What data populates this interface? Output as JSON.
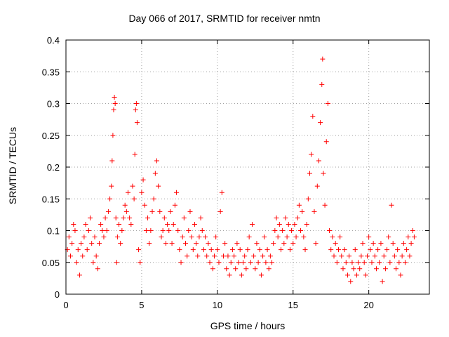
{
  "chart_data": {
    "type": "scatter",
    "title": "Day 066 of 2017, SRMTID for receiver nmtn",
    "xlabel": "GPS time / hours",
    "ylabel": "SRMTID / TECUs",
    "xlim": [
      0,
      24
    ],
    "ylim": [
      0,
      0.4
    ],
    "xticks": [
      0,
      5,
      10,
      15,
      20
    ],
    "yticks": [
      0,
      0.05,
      0.1,
      0.15,
      0.2,
      0.25,
      0.3,
      0.35,
      0.4
    ],
    "xtick_labels": [
      "0",
      "5",
      "10",
      "15",
      "20"
    ],
    "ytick_labels": [
      "0",
      "0.05",
      "0.1",
      "0.15",
      "0.2",
      "0.25",
      "0.3",
      "0.35",
      "0.4"
    ],
    "grid": true,
    "marker": "+",
    "color": "#ff0000",
    "series": [
      {
        "name": "SRMTID",
        "points": [
          [
            0.1,
            0.07
          ],
          [
            0.2,
            0.09
          ],
          [
            0.3,
            0.06
          ],
          [
            0.4,
            0.08
          ],
          [
            0.5,
            0.11
          ],
          [
            0.6,
            0.1
          ],
          [
            0.7,
            0.05
          ],
          [
            0.8,
            0.07
          ],
          [
            0.9,
            0.03
          ],
          [
            1.0,
            0.08
          ],
          [
            1.1,
            0.06
          ],
          [
            1.2,
            0.09
          ],
          [
            1.3,
            0.11
          ],
          [
            1.4,
            0.07
          ],
          [
            1.5,
            0.1
          ],
          [
            1.6,
            0.12
          ],
          [
            1.7,
            0.08
          ],
          [
            1.8,
            0.05
          ],
          [
            1.9,
            0.09
          ],
          [
            2.0,
            0.06
          ],
          [
            2.1,
            0.04
          ],
          [
            2.2,
            0.08
          ],
          [
            2.3,
            0.11
          ],
          [
            2.4,
            0.1
          ],
          [
            2.5,
            0.09
          ],
          [
            2.6,
            0.12
          ],
          [
            2.7,
            0.1
          ],
          [
            2.8,
            0.13
          ],
          [
            2.9,
            0.15
          ],
          [
            3.0,
            0.17
          ],
          [
            3.05,
            0.21
          ],
          [
            3.1,
            0.25
          ],
          [
            3.15,
            0.29
          ],
          [
            3.2,
            0.31
          ],
          [
            3.25,
            0.3
          ],
          [
            3.3,
            0.12
          ],
          [
            3.35,
            0.05
          ],
          [
            3.4,
            0.09
          ],
          [
            3.5,
            0.11
          ],
          [
            3.6,
            0.08
          ],
          [
            3.7,
            0.1
          ],
          [
            3.8,
            0.12
          ],
          [
            3.9,
            0.14
          ],
          [
            4.0,
            0.13
          ],
          [
            4.1,
            0.16
          ],
          [
            4.2,
            0.12
          ],
          [
            4.3,
            0.11
          ],
          [
            4.4,
            0.17
          ],
          [
            4.5,
            0.15
          ],
          [
            4.55,
            0.22
          ],
          [
            4.6,
            0.29
          ],
          [
            4.65,
            0.3
          ],
          [
            4.7,
            0.27
          ],
          [
            4.8,
            0.07
          ],
          [
            4.9,
            0.05
          ],
          [
            5.0,
            0.16
          ],
          [
            5.1,
            0.18
          ],
          [
            5.2,
            0.14
          ],
          [
            5.3,
            0.1
          ],
          [
            5.4,
            0.12
          ],
          [
            5.5,
            0.08
          ],
          [
            5.6,
            0.1
          ],
          [
            5.7,
            0.13
          ],
          [
            5.8,
            0.15
          ],
          [
            5.9,
            0.19
          ],
          [
            6.0,
            0.21
          ],
          [
            6.1,
            0.17
          ],
          [
            6.2,
            0.13
          ],
          [
            6.3,
            0.09
          ],
          [
            6.4,
            0.1
          ],
          [
            6.5,
            0.12
          ],
          [
            6.6,
            0.08
          ],
          [
            6.7,
            0.11
          ],
          [
            6.8,
            0.1
          ],
          [
            6.9,
            0.13
          ],
          [
            7.0,
            0.08
          ],
          [
            7.1,
            0.11
          ],
          [
            7.2,
            0.14
          ],
          [
            7.3,
            0.16
          ],
          [
            7.4,
            0.1
          ],
          [
            7.5,
            0.07
          ],
          [
            7.6,
            0.05
          ],
          [
            7.7,
            0.09
          ],
          [
            7.8,
            0.12
          ],
          [
            7.9,
            0.08
          ],
          [
            8.0,
            0.06
          ],
          [
            8.1,
            0.1
          ],
          [
            8.2,
            0.13
          ],
          [
            8.3,
            0.09
          ],
          [
            8.4,
            0.07
          ],
          [
            8.5,
            0.11
          ],
          [
            8.6,
            0.08
          ],
          [
            8.7,
            0.06
          ],
          [
            8.8,
            0.09
          ],
          [
            8.9,
            0.12
          ],
          [
            9.0,
            0.1
          ],
          [
            9.1,
            0.07
          ],
          [
            9.2,
            0.09
          ],
          [
            9.3,
            0.06
          ],
          [
            9.4,
            0.08
          ],
          [
            9.5,
            0.05
          ],
          [
            9.6,
            0.07
          ],
          [
            9.7,
            0.04
          ],
          [
            9.8,
            0.06
          ],
          [
            9.9,
            0.09
          ],
          [
            10.0,
            0.07
          ],
          [
            10.1,
            0.05
          ],
          [
            10.2,
            0.13
          ],
          [
            10.3,
            0.16
          ],
          [
            10.4,
            0.06
          ],
          [
            10.5,
            0.08
          ],
          [
            10.6,
            0.04
          ],
          [
            10.7,
            0.06
          ],
          [
            10.8,
            0.03
          ],
          [
            10.9,
            0.05
          ],
          [
            11.0,
            0.07
          ],
          [
            11.1,
            0.06
          ],
          [
            11.2,
            0.04
          ],
          [
            11.3,
            0.08
          ],
          [
            11.4,
            0.05
          ],
          [
            11.5,
            0.07
          ],
          [
            11.6,
            0.03
          ],
          [
            11.7,
            0.05
          ],
          [
            11.8,
            0.06
          ],
          [
            11.9,
            0.04
          ],
          [
            12.0,
            0.07
          ],
          [
            12.1,
            0.09
          ],
          [
            12.2,
            0.05
          ],
          [
            12.3,
            0.11
          ],
          [
            12.4,
            0.06
          ],
          [
            12.5,
            0.04
          ],
          [
            12.6,
            0.08
          ],
          [
            12.7,
            0.05
          ],
          [
            12.8,
            0.07
          ],
          [
            12.9,
            0.03
          ],
          [
            13.0,
            0.06
          ],
          [
            13.1,
            0.09
          ],
          [
            13.2,
            0.05
          ],
          [
            13.3,
            0.07
          ],
          [
            13.4,
            0.04
          ],
          [
            13.5,
            0.06
          ],
          [
            13.6,
            0.05
          ],
          [
            13.7,
            0.08
          ],
          [
            13.8,
            0.1
          ],
          [
            13.9,
            0.12
          ],
          [
            14.0,
            0.09
          ],
          [
            14.1,
            0.11
          ],
          [
            14.2,
            0.07
          ],
          [
            14.3,
            0.1
          ],
          [
            14.4,
            0.08
          ],
          [
            14.5,
            0.12
          ],
          [
            14.6,
            0.09
          ],
          [
            14.7,
            0.11
          ],
          [
            14.8,
            0.07
          ],
          [
            14.9,
            0.1
          ],
          [
            15.0,
            0.08
          ],
          [
            15.1,
            0.11
          ],
          [
            15.2,
            0.09
          ],
          [
            15.3,
            0.12
          ],
          [
            15.4,
            0.14
          ],
          [
            15.5,
            0.1
          ],
          [
            15.6,
            0.13
          ],
          [
            15.7,
            0.09
          ],
          [
            15.8,
            0.07
          ],
          [
            15.9,
            0.11
          ],
          [
            16.0,
            0.15
          ],
          [
            16.1,
            0.19
          ],
          [
            16.2,
            0.22
          ],
          [
            16.3,
            0.28
          ],
          [
            16.4,
            0.13
          ],
          [
            16.5,
            0.08
          ],
          [
            16.6,
            0.17
          ],
          [
            16.7,
            0.21
          ],
          [
            16.8,
            0.27
          ],
          [
            16.9,
            0.33
          ],
          [
            16.95,
            0.37
          ],
          [
            17.0,
            0.19
          ],
          [
            17.1,
            0.14
          ],
          [
            17.2,
            0.24
          ],
          [
            17.3,
            0.3
          ],
          [
            17.4,
            0.1
          ],
          [
            17.5,
            0.07
          ],
          [
            17.6,
            0.09
          ],
          [
            17.7,
            0.06
          ],
          [
            17.8,
            0.08
          ],
          [
            17.9,
            0.05
          ],
          [
            18.0,
            0.07
          ],
          [
            18.1,
            0.09
          ],
          [
            18.2,
            0.06
          ],
          [
            18.3,
            0.04
          ],
          [
            18.4,
            0.07
          ],
          [
            18.5,
            0.05
          ],
          [
            18.6,
            0.03
          ],
          [
            18.7,
            0.06
          ],
          [
            18.8,
            0.02
          ],
          [
            18.9,
            0.05
          ],
          [
            19.0,
            0.04
          ],
          [
            19.1,
            0.07
          ],
          [
            19.2,
            0.03
          ],
          [
            19.3,
            0.05
          ],
          [
            19.4,
            0.04
          ],
          [
            19.5,
            0.06
          ],
          [
            19.6,
            0.08
          ],
          [
            19.7,
            0.05
          ],
          [
            19.8,
            0.03
          ],
          [
            19.9,
            0.06
          ],
          [
            20.0,
            0.09
          ],
          [
            20.1,
            0.07
          ],
          [
            20.2,
            0.05
          ],
          [
            20.3,
            0.08
          ],
          [
            20.4,
            0.06
          ],
          [
            20.5,
            0.04
          ],
          [
            20.6,
            0.07
          ],
          [
            20.7,
            0.05
          ],
          [
            20.8,
            0.08
          ],
          [
            20.9,
            0.02
          ],
          [
            21.0,
            0.06
          ],
          [
            21.1,
            0.04
          ],
          [
            21.2,
            0.07
          ],
          [
            21.3,
            0.09
          ],
          [
            21.4,
            0.05
          ],
          [
            21.5,
            0.14
          ],
          [
            21.6,
            0.08
          ],
          [
            21.7,
            0.06
          ],
          [
            21.8,
            0.04
          ],
          [
            21.9,
            0.07
          ],
          [
            22.0,
            0.05
          ],
          [
            22.1,
            0.03
          ],
          [
            22.2,
            0.06
          ],
          [
            22.3,
            0.08
          ],
          [
            22.4,
            0.05
          ],
          [
            22.5,
            0.07
          ],
          [
            22.6,
            0.09
          ],
          [
            22.7,
            0.06
          ],
          [
            22.8,
            0.08
          ],
          [
            22.9,
            0.1
          ],
          [
            23.0,
            0.09
          ]
        ]
      }
    ]
  }
}
